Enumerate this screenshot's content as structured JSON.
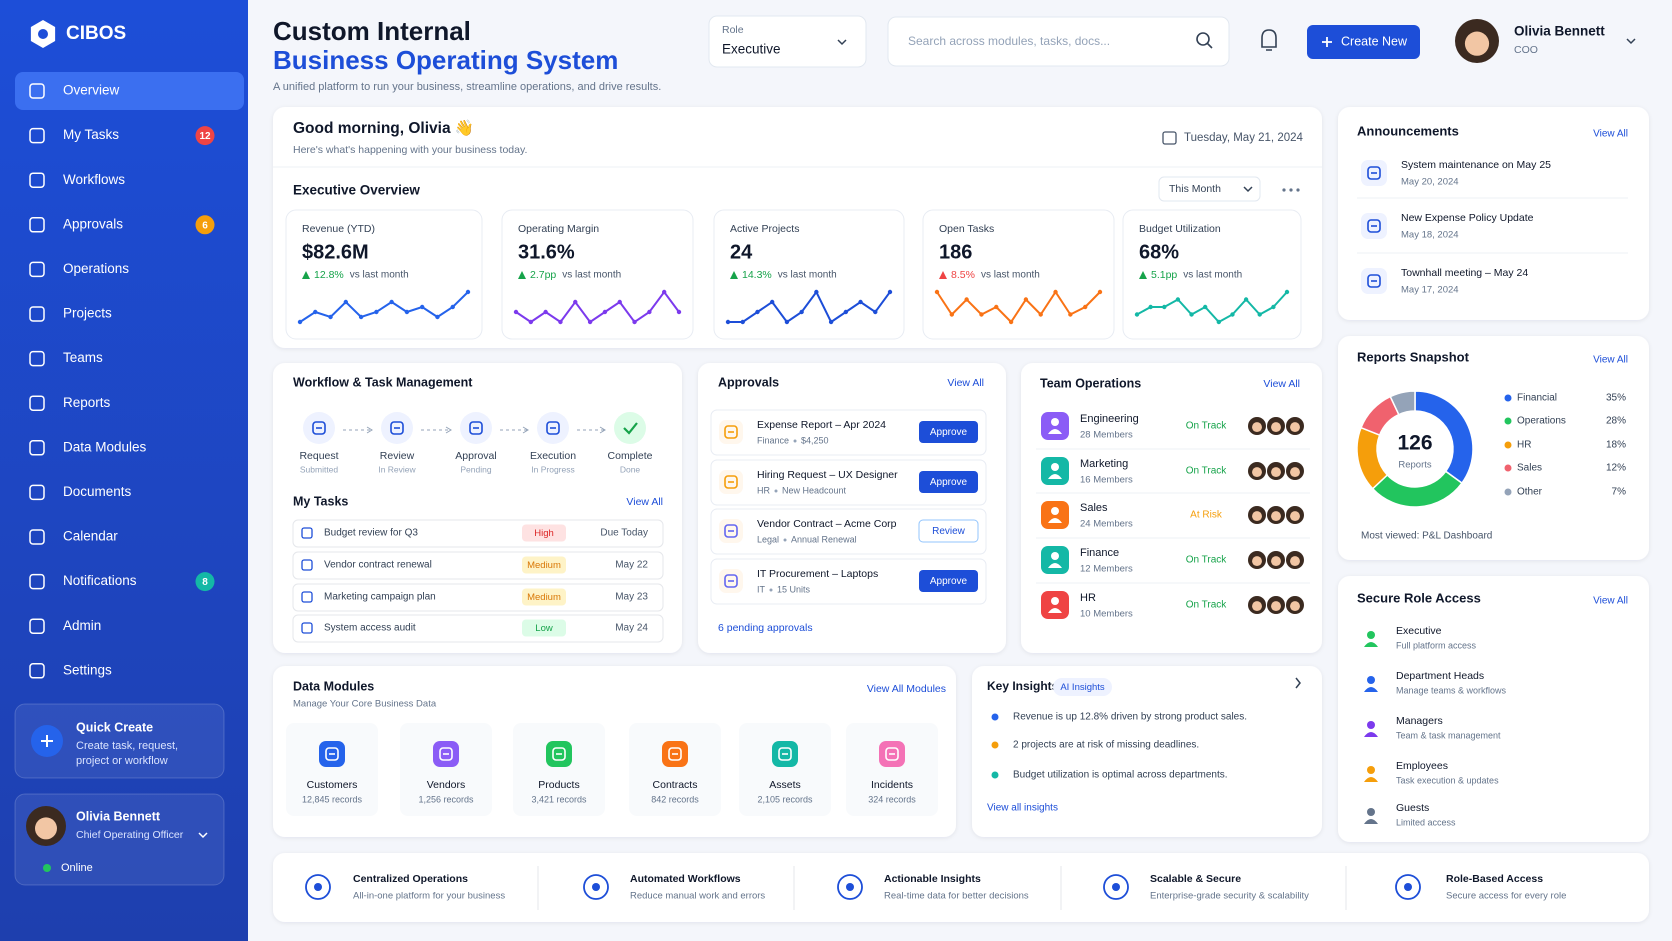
{
  "sidebar": {
    "brand": "CIBOS",
    "nav": [
      {
        "label": "Overview",
        "active": true
      },
      {
        "label": "My Tasks",
        "badge": 12,
        "badge_color": "#ef4444"
      },
      {
        "label": "Workflows"
      },
      {
        "label": "Approvals",
        "badge": 6,
        "badge_color": "#f59e0b"
      },
      {
        "label": "Operations"
      },
      {
        "label": "Projects"
      },
      {
        "label": "Teams"
      },
      {
        "label": "Reports"
      },
      {
        "label": "Data Modules"
      },
      {
        "label": "Documents"
      },
      {
        "label": "Calendar"
      },
      {
        "label": "Notifications",
        "badge": 8,
        "badge_color": "#14b8a6"
      },
      {
        "label": "Admin"
      },
      {
        "label": "Settings"
      }
    ],
    "quick_create": {
      "title": "Quick Create",
      "text_1": "Create task, request,",
      "text_2": "project or workflow"
    },
    "user": {
      "name": "Olivia Bennett",
      "role": "Chief Operating Officer",
      "status": "Online"
    }
  },
  "header": {
    "title_line_1": "Custom Internal",
    "title_line_2": "Business Operating System",
    "subtitle": "A unified platform to run your business, streamline operations, and drive results.",
    "role_label": "Role",
    "role_value": "Executive",
    "search_placeholder": "Search across modules, tasks, docs...",
    "create_button": "Create New",
    "user_name": "Olivia Bennett",
    "user_role": "COO"
  },
  "greeting": {
    "title": "Good morning, Olivia 👋",
    "subtitle": "Here's what's happening with your business today.",
    "date": "Tuesday, May 21, 2024"
  },
  "executive_overview": {
    "title": "Executive Overview",
    "period": "This Month",
    "kpis": [
      {
        "label": "Revenue (YTD)",
        "value": "$82.6M",
        "change": "12.8%",
        "compare": "vs last month",
        "change_color": "#16a34a",
        "color": "#2563eb",
        "trend": [
          2,
          4,
          3,
          6,
          3,
          4,
          6,
          4,
          5,
          3,
          5,
          8
        ]
      },
      {
        "label": "Operating Margin",
        "value": "31.6%",
        "change": "2.7pp",
        "compare": "vs last month",
        "change_color": "#16a34a",
        "color": "#7c3aed",
        "trend": [
          4,
          3,
          4,
          3,
          5,
          3,
          4,
          5,
          3,
          4,
          6,
          4
        ]
      },
      {
        "label": "Active Projects",
        "value": "24",
        "change": "14.3%",
        "compare": "vs last month",
        "change_color": "#16a34a",
        "color": "#1d4ed8",
        "trend": [
          2,
          2,
          3,
          4,
          2,
          3,
          5,
          2,
          3,
          4,
          3,
          5
        ]
      },
      {
        "label": "Open Tasks",
        "value": "186",
        "change": "8.5%",
        "compare": "vs last month",
        "change_color": "#ef4444",
        "color": "#f97316",
        "trend": [
          6,
          3,
          5,
          3,
          4,
          2,
          5,
          3,
          6,
          3,
          4,
          6
        ]
      },
      {
        "label": "Budget Utilization",
        "value": "68%",
        "change": "5.1pp",
        "compare": "vs last month",
        "change_color": "#16a34a",
        "color": "#14b8a6",
        "trend": [
          3,
          4,
          4,
          5,
          3,
          4,
          2,
          3,
          5,
          3,
          4,
          6
        ]
      }
    ]
  },
  "workflow": {
    "title": "Workflow & Task Management",
    "steps": [
      {
        "name": "Request",
        "status": "Submitted"
      },
      {
        "name": "Review",
        "status": "In Review"
      },
      {
        "name": "Approval",
        "status": "Pending"
      },
      {
        "name": "Execution",
        "status": "In Progress"
      },
      {
        "name": "Complete",
        "status": "Done"
      }
    ],
    "tasks_title": "My Tasks",
    "tasks_link": "View All",
    "tasks": [
      {
        "name": "Budget review for Q3",
        "priority": "High",
        "priority_color": "#dc2626",
        "priority_bg": "#fee2e2",
        "due": "Due Today"
      },
      {
        "name": "Vendor contract renewal",
        "priority": "Medium",
        "priority_color": "#d97706",
        "priority_bg": "#fef3c7",
        "due": "May 22"
      },
      {
        "name": "Marketing campaign plan",
        "priority": "Medium",
        "priority_color": "#d97706",
        "priority_bg": "#fef3c7",
        "due": "May 23"
      },
      {
        "name": "System access audit",
        "priority": "Low",
        "priority_color": "#16a34a",
        "priority_bg": "#dcfce7",
        "due": "May 24"
      }
    ]
  },
  "approvals": {
    "title": "Approvals",
    "link": "View All",
    "items": [
      {
        "title": "Expense Report – Apr 2024",
        "category": "Finance",
        "detail": "$4,250",
        "action": "Approve",
        "action_style": "primary",
        "color": "#f59e0b"
      },
      {
        "title": "Hiring Request – UX Designer",
        "category": "HR",
        "detail": "New Headcount",
        "action": "Approve",
        "action_style": "primary",
        "color": "#f59e0b"
      },
      {
        "title": "Vendor Contract – Acme Corp",
        "category": "Legal",
        "detail": "Annual Renewal",
        "action": "Review",
        "action_style": "outline",
        "color": "#6366f1"
      },
      {
        "title": "IT Procurement – Laptops",
        "category": "IT",
        "detail": "15 Units",
        "action": "Approve",
        "action_style": "primary",
        "color": "#6366f1"
      }
    ],
    "footer": "6 pending approvals"
  },
  "team_operations": {
    "title": "Team Operations",
    "link": "View All",
    "teams": [
      {
        "name": "Engineering",
        "members": "28 Members",
        "status": "On Track",
        "status_color": "#16a34a",
        "color": "#8b5cf6"
      },
      {
        "name": "Marketing",
        "members": "16 Members",
        "status": "On Track",
        "status_color": "#16a34a",
        "color": "#14b8a6"
      },
      {
        "name": "Sales",
        "members": "24 Members",
        "status": "At Risk",
        "status_color": "#f59e0b",
        "color": "#f97316"
      },
      {
        "name": "Finance",
        "members": "12 Members",
        "status": "On Track",
        "status_color": "#16a34a",
        "color": "#14b8a6"
      },
      {
        "name": "HR",
        "members": "10 Members",
        "status": "On Track",
        "status_color": "#16a34a",
        "color": "#ef4444"
      }
    ]
  },
  "data_modules": {
    "title": "Data Modules",
    "subtitle": "Manage Your Core Business Data",
    "link": "View All Modules",
    "modules": [
      {
        "name": "Customers",
        "records": "12,845 records",
        "color": "#2563eb"
      },
      {
        "name": "Vendors",
        "records": "1,256 records",
        "color": "#8b5cf6"
      },
      {
        "name": "Products",
        "records": "3,421 records",
        "color": "#22c55e"
      },
      {
        "name": "Contracts",
        "records": "842 records",
        "color": "#f97316"
      },
      {
        "name": "Assets",
        "records": "2,105 records",
        "color": "#14b8a6"
      },
      {
        "name": "Incidents",
        "records": "324 records",
        "color": "#f472b6"
      }
    ]
  },
  "key_insights": {
    "title": "Key Insights",
    "tag": "AI Insights",
    "items": [
      {
        "text": "Revenue is up 12.8% driven by strong product sales.",
        "color": "#2563eb"
      },
      {
        "text": "2 projects are at risk of missing deadlines.",
        "color": "#f59e0b"
      },
      {
        "text": "Budget utilization is optimal across departments.",
        "color": "#14b8a6"
      }
    ],
    "link": "View all insights"
  },
  "announcements": {
    "title": "Announcements",
    "link": "View All",
    "items": [
      {
        "title": "System maintenance on May 25",
        "date": "May 20, 2024"
      },
      {
        "title": "New Expense Policy Update",
        "date": "May 18, 2024"
      },
      {
        "title": "Townhall meeting – May 24",
        "date": "May 17, 2024"
      }
    ]
  },
  "reports_snapshot": {
    "title": "Reports Snapshot",
    "link": "View All",
    "total": 126,
    "total_label": "Reports",
    "segments": [
      {
        "name": "Financial",
        "value": 35,
        "value_label": "35%",
        "color": "#2563eb"
      },
      {
        "name": "Operations",
        "value": 28,
        "value_label": "28%",
        "color": "#22c55e"
      },
      {
        "name": "HR",
        "value": 18,
        "value_label": "18%",
        "color": "#f59e0b"
      },
      {
        "name": "Sales",
        "value": 12,
        "value_label": "12%",
        "color": "#f0626e"
      },
      {
        "name": "Other",
        "value": 7,
        "value_label": "7%",
        "color": "#94a3b8"
      }
    ],
    "footer": "Most viewed: P&L Dashboard"
  },
  "role_access": {
    "title": "Secure Role Access",
    "link": "View All",
    "roles": [
      {
        "name": "Executive",
        "desc": "Full platform access",
        "color": "#22c55e"
      },
      {
        "name": "Department Heads",
        "desc": "Manage teams & workflows",
        "color": "#2563eb"
      },
      {
        "name": "Managers",
        "desc": "Team & task management",
        "color": "#7c3aed"
      },
      {
        "name": "Employees",
        "desc": "Task execution & updates",
        "color": "#f59e0b"
      },
      {
        "name": "Guests",
        "desc": "Limited access",
        "color": "#64748b"
      }
    ]
  },
  "features": [
    {
      "title": "Centralized Operations",
      "desc": "All-in-one platform for your business"
    },
    {
      "title": "Automated Workflows",
      "desc": "Reduce manual work and errors"
    },
    {
      "title": "Actionable Insights",
      "desc": "Real-time data for better decisions"
    },
    {
      "title": "Scalable & Secure",
      "desc": "Enterprise-grade security & scalability"
    },
    {
      "title": "Role-Based Access",
      "desc": "Secure access for every role"
    }
  ]
}
